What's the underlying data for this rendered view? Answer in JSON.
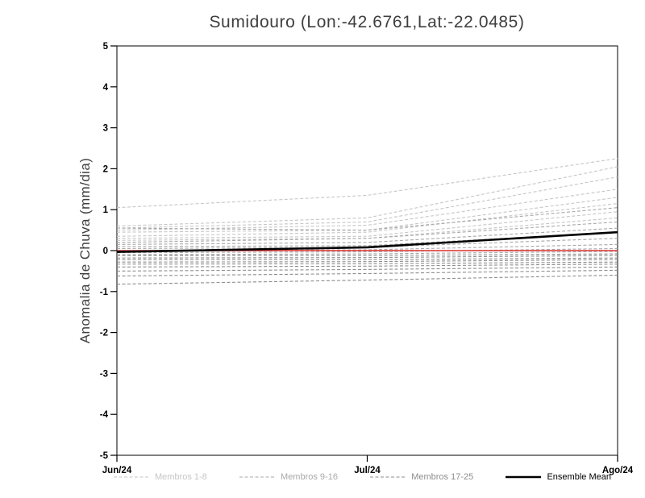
{
  "chart_data": {
    "type": "line",
    "title": "Sumidouro (Lon:-42.6761,Lat:-22.0485)",
    "ylabel": "Anomalia de Chuva (mm/dia)",
    "xlabel": "",
    "x_labels": [
      "Jun/24",
      "Jul/24",
      "Ago/24"
    ],
    "ylim": [
      -5,
      5
    ],
    "ytick_labels": [
      "-5",
      "-4",
      "-3",
      "-2",
      "-1",
      "0",
      "1",
      "2",
      "3",
      "4",
      "5"
    ],
    "grid": false,
    "legend_position": "bottom",
    "groups": [
      {
        "name": "Membros 1-8",
        "color": "#c6c6c6",
        "style": "dashed",
        "width": 1.1
      },
      {
        "name": "Membros 9-16",
        "color": "#a8a8a8",
        "style": "dashed",
        "width": 1.1
      },
      {
        "name": "Membros 17-25",
        "color": "#8d8d8d",
        "style": "dashed",
        "width": 1.1
      },
      {
        "name": "Ensemble Mean",
        "color": "#000000",
        "style": "solid",
        "width": 2.6
      }
    ],
    "members": [
      {
        "group": 0,
        "values": [
          1.05,
          1.35,
          2.25
        ]
      },
      {
        "group": 0,
        "values": [
          0.6,
          0.8,
          2.05
        ]
      },
      {
        "group": 0,
        "values": [
          0.55,
          0.7,
          1.8
        ]
      },
      {
        "group": 0,
        "values": [
          0.5,
          0.62,
          1.5
        ]
      },
      {
        "group": 0,
        "values": [
          0.45,
          0.5,
          1.3
        ]
      },
      {
        "group": 0,
        "values": [
          0.35,
          0.45,
          1.15
        ]
      },
      {
        "group": 0,
        "values": [
          0.3,
          0.35,
          0.95
        ]
      },
      {
        "group": 0,
        "values": [
          0.25,
          0.3,
          0.8
        ]
      },
      {
        "group": 1,
        "values": [
          0.55,
          0.5,
          1.05
        ]
      },
      {
        "group": 1,
        "values": [
          0.2,
          0.3,
          0.7
        ]
      },
      {
        "group": 1,
        "values": [
          0.15,
          0.2,
          0.55
        ]
      },
      {
        "group": 1,
        "values": [
          0.1,
          0.12,
          0.45
        ]
      },
      {
        "group": 1,
        "values": [
          0.05,
          0.08,
          0.3
        ]
      },
      {
        "group": 1,
        "values": [
          0.0,
          0.02,
          0.15
        ]
      },
      {
        "group": 1,
        "values": [
          -0.05,
          -0.03,
          0.05
        ]
      },
      {
        "group": 1,
        "values": [
          -0.1,
          -0.08,
          -0.02
        ]
      },
      {
        "group": 2,
        "values": [
          -0.12,
          -0.12,
          -0.08
        ]
      },
      {
        "group": 2,
        "values": [
          -0.18,
          -0.17,
          -0.12
        ]
      },
      {
        "group": 2,
        "values": [
          -0.22,
          -0.22,
          -0.18
        ]
      },
      {
        "group": 2,
        "values": [
          -0.28,
          -0.27,
          -0.22
        ]
      },
      {
        "group": 2,
        "values": [
          -0.33,
          -0.32,
          -0.28
        ]
      },
      {
        "group": 2,
        "values": [
          -0.4,
          -0.38,
          -0.33
        ]
      },
      {
        "group": 2,
        "values": [
          -0.5,
          -0.46,
          -0.4
        ]
      },
      {
        "group": 2,
        "values": [
          -0.62,
          -0.56,
          -0.48
        ]
      },
      {
        "group": 2,
        "values": [
          -0.82,
          -0.72,
          -0.6
        ]
      }
    ],
    "ensemble_mean": [
      -0.03,
      0.08,
      0.45
    ],
    "reference_line": {
      "color": "#e03030",
      "values": [
        0.0,
        0.0,
        0.0
      ],
      "width": 1.4
    }
  }
}
